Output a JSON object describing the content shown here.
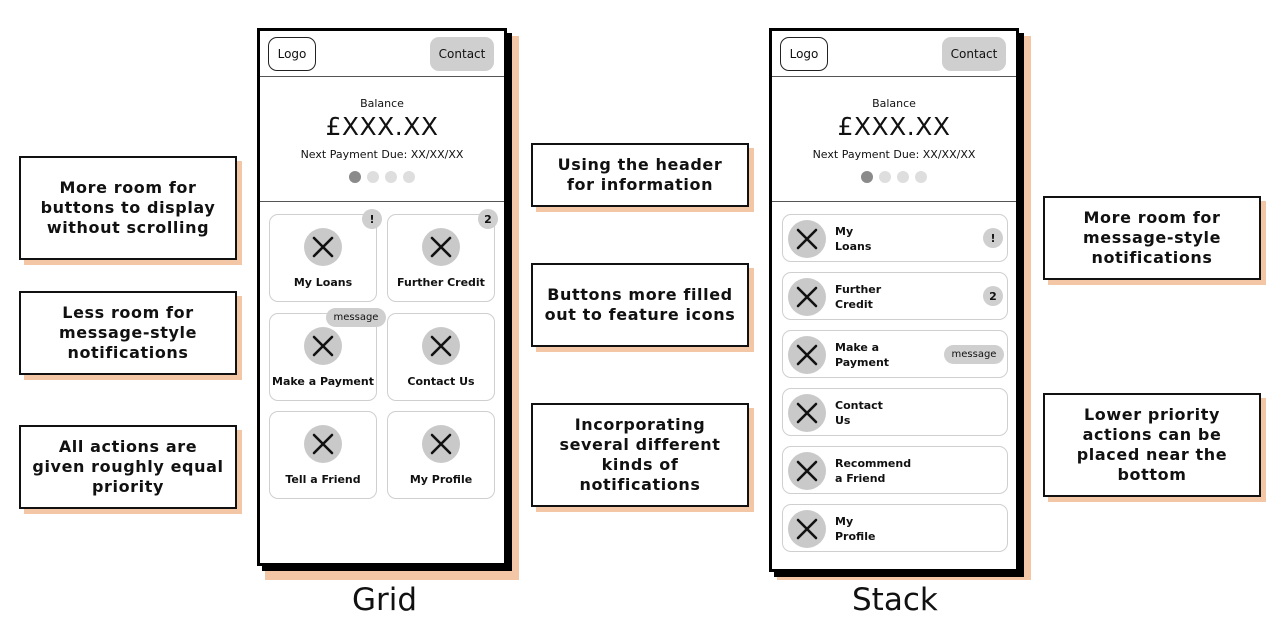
{
  "captions": {
    "grid": "Grid",
    "stack": "Stack"
  },
  "left_notes": [
    "More room for buttons to display without scrolling",
    "Less room for message-style notifications",
    "All actions are given roughly equal priority"
  ],
  "center_notes": [
    "Using the header for information",
    "Buttons more filled out to feature icons",
    "Incorporating several different kinds of notifications"
  ],
  "right_notes": [
    "More room for message-style notifications",
    "Lower priority actions can be placed near the bottom"
  ],
  "phone": {
    "logo": "Logo",
    "contact": "Contact",
    "balance_label": "Balance",
    "balance_amount": "£XXX.XX",
    "next_payment": "Next Payment Due: XX/XX/XX"
  },
  "grid_tiles": [
    {
      "label": "My Loans",
      "badge": "!"
    },
    {
      "label": "Further Credit",
      "badge": "2"
    },
    {
      "label": "Make a Payment",
      "badge": "message"
    },
    {
      "label": "Contact Us",
      "badge": ""
    },
    {
      "label": "Tell a Friend",
      "badge": ""
    },
    {
      "label": "My Profile",
      "badge": ""
    }
  ],
  "stack_rows": [
    {
      "line1": "My",
      "line2": "Loans",
      "badge": "!"
    },
    {
      "line1": "Further",
      "line2": "Credit",
      "badge": "2"
    },
    {
      "line1": "Make a",
      "line2": "Payment",
      "badge": "message"
    },
    {
      "line1": "Contact",
      "line2": "Us",
      "badge": ""
    },
    {
      "line1": "Recommend",
      "line2": "a Friend",
      "badge": ""
    },
    {
      "line1": "My",
      "line2": "Profile",
      "badge": ""
    }
  ],
  "colors": {
    "accent_shadow": "#f3c6a5",
    "icon_circle": "#c9c9c9",
    "badge": "#cfcfcf"
  }
}
